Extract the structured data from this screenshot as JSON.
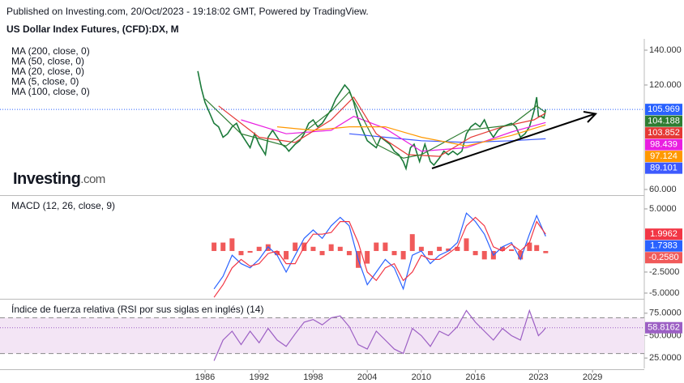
{
  "published": "Published on Investing.com, 20/Oct/2023 - 19:18:02 GMT, Powered by TradingView.",
  "logo": {
    "name": "Investing",
    "suffix": ".com"
  },
  "chart_data": [
    {
      "type": "line",
      "title": "US Dollar Index Futures, (CFD):DX, M",
      "xlim": [
        1963.25,
        2034.74
      ],
      "ylim": [
        57.2,
        146.5
      ],
      "yticks": [
        {
          "value": 140,
          "label": "140.000"
        },
        {
          "value": 120,
          "label": "120.000"
        },
        {
          "value": 60,
          "label": "60.000"
        }
      ],
      "price_line": true,
      "series": [
        {
          "color": "#1b7a3a",
          "last_color": "#2962ff",
          "x": [
            1985.2,
            1985.6,
            1986,
            1986.5,
            1987,
            1987.5,
            1988,
            1988.5,
            1989,
            1989.5,
            1990,
            1990.5,
            1991,
            1991.5,
            1992,
            1992.7,
            1993,
            1993.5,
            1994,
            1994.5,
            1995,
            1995.3,
            1996,
            1996.5,
            1997,
            1997.5,
            1998,
            1998.5,
            1999,
            1999.5,
            2000,
            2000.5,
            2001,
            2001.5,
            2002,
            2002.5,
            2003,
            2003.5,
            2004,
            2004.5,
            2005,
            2005.5,
            2006,
            2006.5,
            2007,
            2007.5,
            2008,
            2008.3,
            2008.8,
            2009.2,
            2009.8,
            2010.4,
            2011,
            2011.4,
            2012,
            2012.5,
            2013,
            2013.5,
            2014,
            2014.5,
            2015,
            2015.5,
            2016,
            2016.5,
            2017,
            2017.5,
            2018,
            2018.5,
            2019,
            2019.5,
            2020,
            2020.5,
            2021,
            2021.5,
            2022,
            2022.5,
            2022.8,
            2023,
            2023.3,
            2023.6,
            2023.8
          ],
          "values": [
            128,
            118,
            110,
            104,
            98,
            96,
            90,
            92,
            96,
            98,
            92,
            88,
            84,
            92,
            86,
            80,
            90,
            94,
            90,
            86,
            84,
            82,
            86,
            88,
            92,
            98,
            100,
            96,
            98,
            102,
            106,
            112,
            116,
            120,
            117,
            110,
            100,
            94,
            88,
            86,
            84,
            90,
            88,
            86,
            82,
            80,
            76,
            72,
            84,
            86,
            76,
            86,
            76,
            74,
            78,
            82,
            80,
            82,
            80,
            82,
            92,
            96,
            98,
            96,
            100,
            94,
            90,
            94,
            96,
            97,
            98,
            96,
            90,
            92,
            96,
            105,
            113,
            102,
            102,
            101,
            105.969
          ]
        },
        {
          "name": "MA (200, close, 0)",
          "color": "#3d5afe",
          "x": [
            2002,
            2006,
            2010,
            2015,
            2020,
            2023.8
          ],
          "values": [
            92,
            90,
            88,
            87,
            88,
            89.101
          ]
        },
        {
          "name": "MA (50, close, 0)",
          "color": "#e91ee0",
          "x": [
            1990,
            1995,
            2000,
            2002.5,
            2006,
            2010,
            2015,
            2020,
            2023.8
          ],
          "values": [
            100,
            92,
            94,
            102,
            95,
            82,
            84,
            93,
            98.439
          ]
        },
        {
          "name": "MA (20, close, 0)",
          "color": "#e53935",
          "x": [
            1987.5,
            1992,
            1996,
            2000,
            2002.5,
            2005,
            2008.5,
            2012,
            2015.5,
            2019,
            2022.5,
            2023.8
          ],
          "values": [
            108,
            90,
            87,
            100,
            113,
            92,
            80,
            79,
            90,
            96,
            100,
            103.852
          ]
        },
        {
          "name": "MA (5, close, 0)",
          "color": "#2e7d32",
          "x": [
            1986,
            1990,
            1995,
            2000,
            2002,
            2005,
            2008,
            2010,
            2015,
            2020,
            2022.8,
            2023.8
          ],
          "values": [
            112,
            92,
            85,
            105,
            116,
            86,
            78,
            80,
            94,
            97,
            108,
            104.188
          ]
        },
        {
          "name": "MA (100, close, 0)",
          "color": "#ff9800",
          "x": [
            1994,
            1998,
            2002,
            2006,
            2010,
            2015,
            2020,
            2023.8
          ],
          "values": [
            96,
            94,
            96,
            96,
            90,
            85,
            91,
            97.124
          ]
        }
      ]
    },
    {
      "type": "combo",
      "title": "MACD (12, 26, close, 9)",
      "xlim": [
        1963.25,
        2034.74
      ],
      "ylim": [
        -5.58,
        6.44
      ],
      "yticks": [
        {
          "value": 5,
          "label": "5.0000"
        },
        {
          "value": -2.5,
          "label": "-2.5000"
        },
        {
          "value": -5,
          "label": "-5.0000"
        }
      ],
      "series": [
        {
          "style": "histogram",
          "color": "#f05a5a",
          "last_label": "-0.2580",
          "x": [
            1987,
            1988,
            1989,
            1990,
            1991,
            1992,
            1993,
            1994,
            1995,
            1996,
            1997,
            1998,
            1999,
            2000,
            2001,
            2002,
            2003,
            2004,
            2005,
            2006,
            2007,
            2008,
            2009,
            2010,
            2011,
            2012,
            2013,
            2014,
            2015,
            2016,
            2017,
            2018,
            2019,
            2020,
            2021,
            2022,
            2022.8,
            2023.8
          ],
          "values": [
            1,
            1,
            1.5,
            -0.5,
            -0.2,
            0.5,
            0.8,
            -0.5,
            -1,
            1,
            1,
            0.5,
            -0.5,
            0.8,
            0.5,
            -0.5,
            -2,
            -1.5,
            1,
            1,
            -0.5,
            -1,
            2,
            0.5,
            -0.5,
            0.5,
            0.3,
            0.5,
            1.5,
            -0.5,
            -1,
            -1,
            0.5,
            0.2,
            -1,
            1,
            0.7,
            -0.258
          ]
        },
        {
          "color": "#2962ff",
          "x": [
            1987,
            1988,
            1989,
            1990,
            1991,
            1992,
            1993,
            1994,
            1995,
            1996,
            1997,
            1998,
            1999,
            2000,
            2001,
            2002,
            2003,
            2004,
            2005,
            2006,
            2007,
            2008,
            2009,
            2010,
            2011,
            2012,
            2013,
            2014,
            2015,
            2016,
            2017,
            2018,
            2019,
            2020,
            2021,
            2022,
            2022.8,
            2023.8
          ],
          "values": [
            -4.5,
            -3,
            -0.5,
            -1.5,
            -2,
            -1,
            0.5,
            -0.5,
            -2.5,
            -0.5,
            1.5,
            2.5,
            1.5,
            3,
            4,
            3,
            -1,
            -4,
            -2.5,
            -1,
            -2,
            -4.5,
            -0.5,
            0,
            -1.5,
            -0.5,
            0,
            1,
            4.5,
            3.5,
            2,
            -0.5,
            0.5,
            1,
            -1,
            2,
            4.2,
            1.7383
          ]
        },
        {
          "color": "#f23645",
          "x": [
            1987,
            1988,
            1989,
            1990,
            1991,
            1992,
            1993,
            1994,
            1995,
            1996,
            1997,
            1998,
            1999,
            2000,
            2001,
            2002,
            2003,
            2004,
            2005,
            2006,
            2007,
            2008,
            2009,
            2010,
            2011,
            2012,
            2013,
            2014,
            2015,
            2016,
            2017,
            2018,
            2019,
            2020,
            2021,
            2022,
            2022.8,
            2023.8
          ],
          "values": [
            -5.5,
            -4,
            -2,
            -1,
            -1.8,
            -1.5,
            -0.3,
            0,
            -1.5,
            -1.5,
            0.5,
            2,
            2,
            2.2,
            3.5,
            3.5,
            1,
            -2.5,
            -3.5,
            -2,
            -1.5,
            -3.5,
            -2.5,
            -0.5,
            -1,
            -1,
            -0.3,
            0.5,
            3,
            4,
            3,
            0.5,
            0,
            0.8,
            0,
            1,
            3.5,
            1.9962
          ]
        }
      ]
    },
    {
      "type": "line",
      "title": "Índice de fuerza relativa (RSI por sus siglas en inglés) (14)",
      "xlim": [
        1963.25,
        2034.74
      ],
      "ylim": [
        13.4,
        89.3
      ],
      "yticks": [
        {
          "value": 75,
          "label": "75.0000"
        },
        {
          "value": 50,
          "label": "50.0000"
        },
        {
          "value": 25,
          "label": "25.0000"
        }
      ],
      "levels": [
        70,
        30
      ],
      "band_color": "#f3e5f5",
      "price_line": true,
      "xticks": [
        1986,
        1992,
        1998,
        2004,
        2010,
        2016,
        2023,
        2029
      ],
      "series": [
        {
          "color": "#9c5fc4",
          "x": [
            1987,
            1988,
            1989,
            1990,
            1991,
            1992,
            1993,
            1994,
            1995,
            1996,
            1997,
            1998,
            1999,
            2000,
            2001,
            2002,
            2003,
            2004,
            2005,
            2006,
            2007,
            2008,
            2009,
            2010,
            2011,
            2012,
            2013,
            2014,
            2015,
            2016,
            2017,
            2018,
            2019,
            2020,
            2021,
            2022,
            2023,
            2023.5,
            2023.8
          ],
          "values": [
            22,
            45,
            55,
            40,
            55,
            42,
            58,
            45,
            38,
            52,
            65,
            68,
            62,
            70,
            72,
            60,
            40,
            35,
            55,
            45,
            35,
            30,
            58,
            50,
            38,
            55,
            50,
            60,
            78,
            65,
            55,
            45,
            58,
            50,
            45,
            78,
            50,
            55,
            58.8162
          ]
        }
      ]
    }
  ]
}
